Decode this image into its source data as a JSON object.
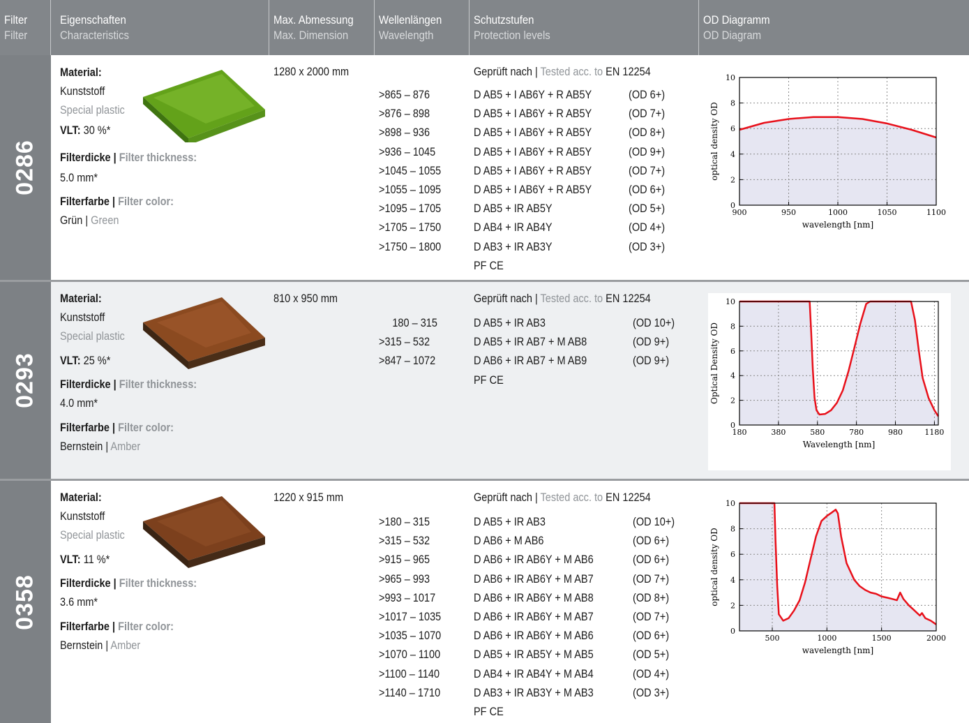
{
  "header": {
    "filter": {
      "de": "Filter",
      "en": "Filter"
    },
    "characteristics": {
      "de": "Eigenschaften",
      "en": "Characteristics"
    },
    "dimension": {
      "de": "Max. Abmessung",
      "en": "Max. Dimension"
    },
    "wavelength": {
      "de": "Wellenlängen",
      "en": "Wavelength"
    },
    "protection": {
      "de": "Schutzstufen",
      "en": "Protection levels"
    },
    "od": {
      "de": "OD Diagramm",
      "en": "OD Diagram"
    }
  },
  "labels": {
    "material": "Material:",
    "material_de": "Kunststoff",
    "material_en": "Special plastic",
    "vlt": "VLT:",
    "thickness_de": "Filterdicke |",
    "thickness_en": "Filter thickness:",
    "color_de": "Filterfarbe |",
    "color_en": "Filter color:",
    "tested_de": "Geprüft nach |",
    "tested_en": "Tested acc. to",
    "standard": "EN 12254",
    "sep": "|"
  },
  "filters": [
    {
      "id": "0286",
      "vlt": "30 %*",
      "thickness": "5.0 mm*",
      "color_de": "Grün",
      "color_en": "Green",
      "swatch_color": "#6fae1e",
      "dimension": "1280 x 2000 mm",
      "wavelengths": [
        ">865 – 876",
        ">876 – 898",
        ">898 – 936",
        ">936 – 1045",
        ">1045 – 1055",
        ">1055 – 1095",
        ">1095 – 1705",
        ">1705 – 1750",
        ">1750 – 1800"
      ],
      "protections": [
        "D AB5 + I AB6Y + R AB5Y",
        "D AB5 + I AB6Y + R AB5Y",
        "D AB5 + I AB6Y + R AB5Y",
        "D AB5 + I AB6Y + R AB5Y",
        "D AB5 + I AB6Y + R AB5Y",
        "D AB5 + I AB6Y + R AB5Y",
        "D AB5 + IR AB5Y",
        "D AB4 + IR AB4Y",
        "D AB3 + IR AB3Y"
      ],
      "ods": [
        "(OD 6+)",
        "(OD 7+)",
        "(OD 8+)",
        "(OD 9+)",
        "(OD 7+)",
        "(OD 6+)",
        "(OD 5+)",
        "(OD 4+)",
        "(OD 3+)"
      ],
      "certs": "PF CE"
    },
    {
      "id": "0293",
      "vlt": "25 %*",
      "thickness": "4.0 mm*",
      "color_de": "Bernstein",
      "color_en": "Amber",
      "swatch_color": "#8a4a22",
      "dimension": "810 x 950 mm",
      "wavelengths": [
        "180 – 315",
        ">315 – 532",
        ">847 – 1072"
      ],
      "protections": [
        "D AB5 + IR AB3",
        "D AB5 + IR AB7 + M AB8",
        "D AB6 + IR AB7 + M AB9"
      ],
      "ods": [
        "(OD 10+)",
        "(OD 9+)",
        "(OD 9+)"
      ],
      "certs": "PF CE"
    },
    {
      "id": "0358",
      "vlt": "11 %*",
      "thickness": "3.6 mm*",
      "color_de": "Bernstein",
      "color_en": "Amber",
      "swatch_color": "#7a3f1e",
      "dimension": "1220 x 915 mm",
      "wavelengths": [
        ">180 – 315",
        ">315 – 532",
        ">915 – 965",
        ">965 – 993",
        ">993 – 1017",
        ">1017 – 1035",
        ">1035 – 1070",
        ">1070 – 1100",
        ">1100 – 1140",
        ">1140 – 1710"
      ],
      "protections": [
        "D AB5 + IR AB3",
        "D AB6 + M AB6",
        "D AB6 + IR AB6Y + M AB6",
        "D AB6 + IR AB6Y + M AB7",
        "D AB6 + IR AB6Y + M AB8",
        "D AB6 + IR AB6Y + M AB7",
        "D AB6 + IR AB6Y + M AB6",
        "D AB5 + IR AB5Y + M AB5",
        "D AB4 + IR AB4Y + M AB4",
        "D AB3 + IR AB3Y + M AB3"
      ],
      "ods": [
        "(OD 10+)",
        "(OD 6+)",
        "(OD 6+)",
        "(OD 7+)",
        "(OD 8+)",
        "(OD 7+)",
        "(OD 6+)",
        "(OD 5+)",
        "(OD 4+)",
        "(OD 3+)"
      ],
      "certs": "PF CE"
    }
  ],
  "chart_data": [
    {
      "type": "area",
      "xlabel": "wavelength [nm]",
      "ylabel": "optical density OD",
      "xlim": [
        900,
        1100
      ],
      "ylim": [
        0,
        10
      ],
      "xticks": [
        "900",
        "950",
        "1000",
        "1050",
        "1100"
      ],
      "yticks": [
        "0",
        "2",
        "4",
        "6",
        "8",
        "10"
      ],
      "line_color": "#e8101a",
      "fill_color": "#e6e6f2",
      "x": [
        900,
        925,
        950,
        975,
        1000,
        1025,
        1050,
        1075,
        1100
      ],
      "y": [
        5.9,
        6.45,
        6.75,
        6.9,
        6.9,
        6.75,
        6.4,
        5.9,
        5.3
      ]
    },
    {
      "type": "area",
      "xlabel": "Wavelength [nm]",
      "ylabel": "Optical Density OD",
      "xlim": [
        180,
        1200
      ],
      "ylim": [
        0,
        10
      ],
      "xticks": [
        "180",
        "380",
        "580",
        "780",
        "980",
        "1180"
      ],
      "yticks": [
        "0",
        "2",
        "4",
        "6",
        "8",
        "10"
      ],
      "line_color": "#e8101a",
      "fill_color": "#e6e6f2",
      "x": [
        180,
        540,
        548,
        556,
        565,
        575,
        590,
        620,
        650,
        680,
        710,
        740,
        770,
        800,
        830,
        850,
        870,
        900,
        1000,
        1060,
        1080,
        1100,
        1120,
        1150,
        1180,
        1200
      ],
      "y": [
        10,
        10,
        7.5,
        4.5,
        2.2,
        1.2,
        0.85,
        0.9,
        1.2,
        1.8,
        2.8,
        4.4,
        6.3,
        8.2,
        9.8,
        10,
        10,
        10,
        10,
        10,
        8.5,
        6.0,
        3.8,
        2.2,
        1.2,
        0.7
      ]
    },
    {
      "type": "area",
      "xlabel": "wavelength [nm]",
      "ylabel": "optical density OD",
      "xlim": [
        200,
        2000
      ],
      "ylim": [
        0,
        10
      ],
      "xticks": [
        "500",
        "1000",
        "1500",
        "2000"
      ],
      "yticks": [
        "0",
        "2",
        "4",
        "6",
        "8",
        "10"
      ],
      "line_color": "#e8101a",
      "fill_color": "#e6e6f2",
      "x": [
        200,
        520,
        530,
        545,
        560,
        600,
        650,
        700,
        750,
        800,
        850,
        900,
        950,
        1000,
        1050,
        1080,
        1100,
        1130,
        1180,
        1250,
        1300,
        1350,
        1400,
        1450,
        1500,
        1550,
        1600,
        1640,
        1670,
        1700,
        1750,
        1800,
        1850,
        1870,
        1900,
        1950,
        2000
      ],
      "y": [
        10,
        10,
        7.0,
        3.5,
        1.3,
        0.8,
        1.0,
        1.6,
        2.4,
        3.8,
        5.6,
        7.4,
        8.6,
        9.0,
        9.3,
        9.5,
        9.2,
        7.4,
        5.3,
        4.0,
        3.5,
        3.2,
        3.0,
        2.9,
        2.7,
        2.6,
        2.5,
        2.4,
        3.0,
        2.5,
        2.0,
        1.6,
        1.2,
        1.4,
        1.0,
        0.8,
        0.5
      ]
    }
  ]
}
